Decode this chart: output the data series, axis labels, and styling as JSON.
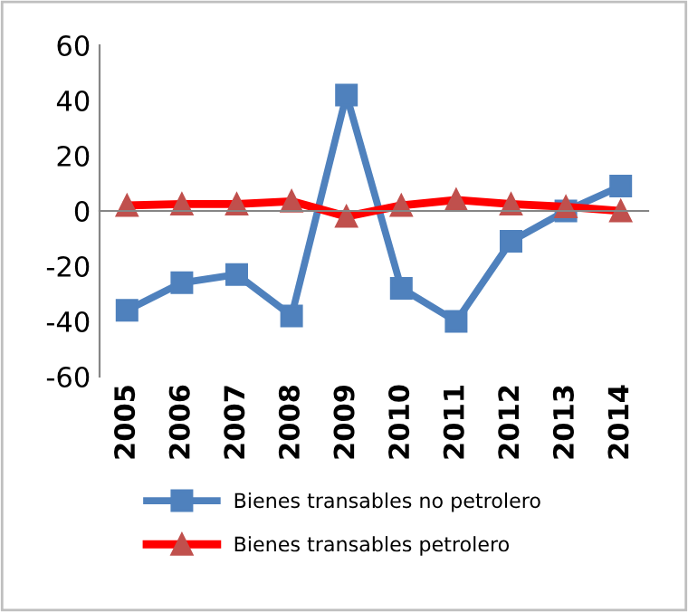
{
  "chart_data": {
    "type": "line",
    "categories": [
      "2005",
      "2006",
      "2007",
      "2008",
      "2009",
      "2010",
      "2011",
      "2012",
      "2013",
      "2014"
    ],
    "series": [
      {
        "name": "Bienes transables no petrolero",
        "color": "#4f81bd",
        "marker": "square",
        "values": [
          -36,
          -26,
          -23,
          -38,
          42,
          -28,
          -40,
          -11,
          0,
          9
        ]
      },
      {
        "name": "Bienes transables petrolero",
        "color": "#ff0000",
        "marker": "triangle",
        "values": [
          2,
          2.5,
          2.5,
          3.5,
          -2,
          2,
          4,
          2.5,
          1.5,
          0
        ]
      }
    ],
    "ylim": [
      -60,
      60
    ],
    "yticks": [
      -60,
      -40,
      -20,
      0,
      20,
      40,
      60
    ],
    "legend": "bottom",
    "line_style": "solid"
  }
}
